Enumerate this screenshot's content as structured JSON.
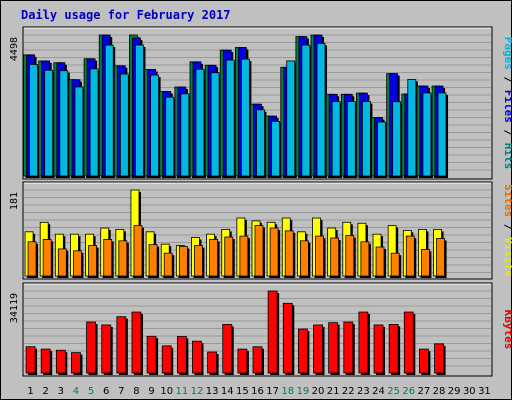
{
  "chart_data": {
    "type": "bar",
    "title": "Daily usage for February 2017",
    "days": [
      "1",
      "2",
      "3",
      "4",
      "5",
      "6",
      "7",
      "8",
      "9",
      "10",
      "11",
      "12",
      "13",
      "14",
      "15",
      "16",
      "17",
      "18",
      "19",
      "20",
      "21",
      "22",
      "23",
      "24",
      "25",
      "26",
      "27",
      "28",
      "29",
      "30",
      "31"
    ],
    "weekend_days": [
      "4",
      "5",
      "11",
      "12",
      "18",
      "19",
      "25",
      "26"
    ],
    "panels": [
      {
        "name": "hits-files-pages",
        "ymax_label": "4498",
        "ymax": 4498,
        "right_label": [
          {
            "text": "Pages",
            "color": "#00b8e0"
          },
          {
            "text": " / ",
            "color": "#000000"
          },
          {
            "text": "Files",
            "color": "#0000e0"
          },
          {
            "text": " / ",
            "color": "#000000"
          },
          {
            "text": "Hits",
            "color": "#008080"
          }
        ],
        "series": [
          {
            "name": "Hits",
            "color": "#008040",
            "values": [
              3865,
              3669,
              3614,
              3073,
              3740,
              4498,
              3515,
              4498,
              3400,
              2695,
              2840,
              3642,
              3533,
              4016,
              4100,
              2292,
              1911,
              3467,
              4447,
              4498,
              2606,
              2607,
              2645,
              1866,
              3268,
              2616,
              2870,
              2870,
              0,
              0,
              0
            ]
          },
          {
            "name": "Files",
            "color": "#0000e0",
            "values": [
              3865,
              3669,
              3614,
              3073,
              3740,
              4498,
              3515,
              4400,
              3400,
              2695,
              2840,
              3642,
              3533,
              4016,
              4100,
              2292,
              1911,
              3467,
              4447,
              4498,
              2606,
              2607,
              2645,
              1866,
              3268,
              2616,
              2870,
              2870,
              0,
              0,
              0
            ]
          },
          {
            "name": "Pages",
            "color": "#00b8e0",
            "values": [
              3557,
              3374,
              3359,
              2842,
              3418,
              4175,
              3253,
              4178,
              3220,
              2514,
              2622,
              3405,
              3294,
              3698,
              3729,
              2112,
              1742,
              3671,
              4175,
              4230,
              2374,
              2374,
              2374,
              1721,
              2369,
              3081,
              2649,
              2649,
              0,
              0,
              0
            ]
          }
        ]
      },
      {
        "name": "visits-sites",
        "ymax_label": "181",
        "ymax": 181,
        "right_label": [
          {
            "text": "Sites",
            "color": "#e07000"
          },
          {
            "text": " / ",
            "color": "#000000"
          },
          {
            "text": "Visits",
            "color": "#e8e800"
          }
        ],
        "series": [
          {
            "name": "Visits",
            "color": "#ffff00",
            "values": [
              93,
              113,
              88,
              88,
              88,
              101,
              98,
              181,
              93,
              67,
              64,
              81,
              88,
              98,
              122,
              116,
              113,
              122,
              93,
              122,
              101,
              113,
              111,
              88,
              106,
              96,
              98,
              98,
              0,
              0,
              0
            ]
          },
          {
            "name": "Sites",
            "color": "#ff8000",
            "values": [
              72,
              77,
              57,
              53,
              64,
              77,
              74,
              106,
              66,
              48,
              62,
              64,
              77,
              82,
              84,
              106,
              101,
              95,
              74,
              84,
              80,
              85,
              72,
              61,
              48,
              84,
              56,
              79,
              0,
              0,
              0
            ]
          }
        ]
      },
      {
        "name": "kbytes",
        "ymax_label": "34119",
        "ymax": 34119,
        "right_label": [
          {
            "text": "KBytes",
            "color": "#e00000"
          }
        ],
        "series": [
          {
            "name": "KBytes",
            "color": "#ff0000",
            "values": [
              10930,
              9950,
              9469,
              8488,
              21208,
              19993,
              23420,
              25363,
              15270,
              11301,
              15185,
              13241,
              8729,
              20215,
              9950,
              10930,
              34119,
              29011,
              18298,
              19993,
              20945,
              21208,
              25363,
              19993,
              20215,
              25363,
              9950,
              12135,
              0,
              0,
              0
            ]
          }
        ]
      }
    ]
  }
}
